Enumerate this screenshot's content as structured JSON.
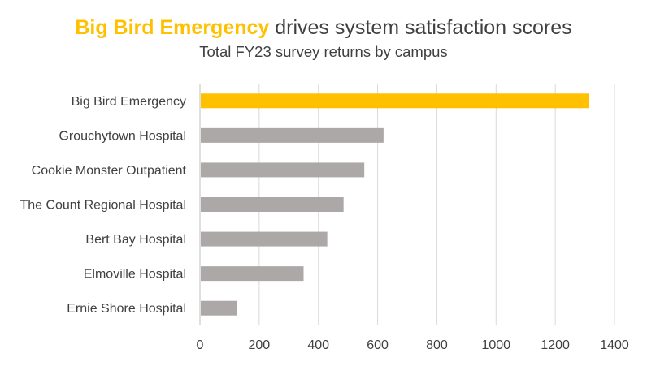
{
  "chart_data": {
    "type": "bar",
    "orientation": "horizontal",
    "title_highlight": "Big Bird Emergency",
    "title_rest": " drives system satisfaction scores",
    "subtitle": "Total FY23 survey returns by campus",
    "categories": [
      "Big Bird Emergency",
      "Grouchytown Hospital",
      "Cookie Monster Outpatient",
      "The Count Regional Hospital",
      "Bert Bay Hospital",
      "Elmoville Hospital",
      "Ernie Shore Hospital"
    ],
    "values": [
      1315,
      620,
      555,
      485,
      430,
      350,
      125
    ],
    "xlim": [
      0,
      1400
    ],
    "xticks": [
      "0",
      "200",
      "400",
      "600",
      "800",
      "1000",
      "1200",
      "1400"
    ],
    "grid": "vertical",
    "legend": "none",
    "highlight_category": "Big Bird Emergency",
    "colors": {
      "highlight": "#FFC000",
      "default_bar": "#ADA8A8",
      "gridline": "#D9D9D9",
      "axis": "#BFBFBF",
      "text": "#404040"
    }
  }
}
